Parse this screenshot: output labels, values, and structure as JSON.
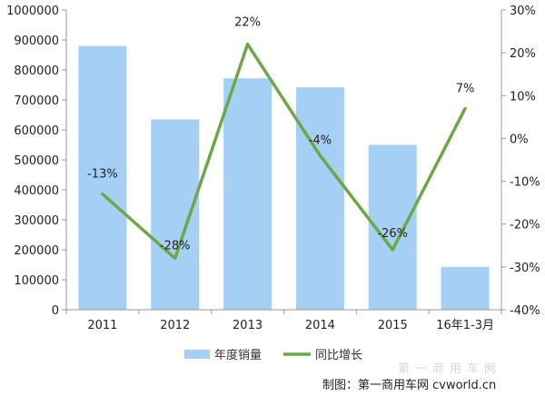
{
  "chart_data": {
    "type": "bar+line",
    "categories": [
      "2011",
      "2012",
      "2013",
      "2014",
      "2015",
      "16年1-3月"
    ],
    "series": [
      {
        "name": "年度销量",
        "type": "bar",
        "axis": "left",
        "values": [
          880000,
          635000,
          772000,
          742000,
          550000,
          143000
        ]
      },
      {
        "name": "同比增长",
        "type": "line",
        "axis": "right",
        "values": [
          -13,
          -28,
          22,
          -4,
          -26,
          7
        ],
        "labels": [
          "-13%",
          "-28%",
          "22%",
          "-4%",
          "-26%",
          "7%"
        ]
      }
    ],
    "y_left": {
      "min": 0,
      "max": 1000000,
      "ticks": [
        "0",
        "100000",
        "200000",
        "300000",
        "400000",
        "500000",
        "600000",
        "700000",
        "800000",
        "900000",
        "1000000"
      ]
    },
    "y_right": {
      "min": -40,
      "max": 30,
      "ticks": [
        "-40%",
        "-30%",
        "-20%",
        "-10%",
        "0%",
        "10%",
        "20%",
        "30%"
      ]
    },
    "legend_position": "bottom-center",
    "grid": false
  },
  "colors": {
    "bar": "#a6cff6",
    "line": "#6ea846",
    "axis": "#9a9a9a"
  },
  "credit": "制图：第一商用车网 cvworld.cn",
  "watermark": "第一商用车网"
}
